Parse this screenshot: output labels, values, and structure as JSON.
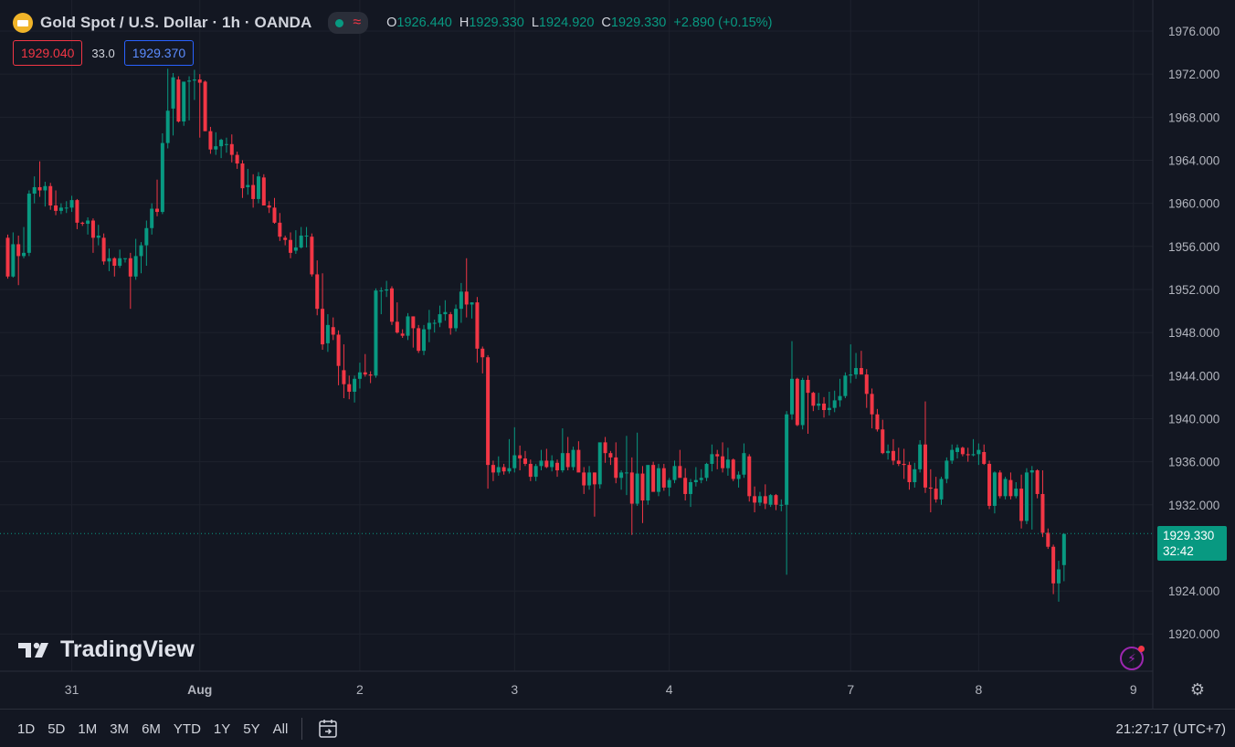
{
  "header": {
    "symbol_title": "Gold Spot / U.S. Dollar · 1h · OANDA",
    "ohlc": {
      "o_label": "O",
      "o_value": "1926.440",
      "h_label": "H",
      "h_value": "1929.330",
      "l_label": "L",
      "l_value": "1924.920",
      "c_label": "C",
      "c_value": "1929.330",
      "change": "+2.890 (+0.15%)"
    },
    "bid": "1929.040",
    "spread": "33.0",
    "ask": "1929.370"
  },
  "last_price": {
    "price": "1929.330",
    "countdown": "32:42"
  },
  "watermark": "TradingView",
  "bottom_bar": {
    "ranges": [
      "1D",
      "5D",
      "1M",
      "3M",
      "6M",
      "YTD",
      "1Y",
      "5Y",
      "All"
    ],
    "clock": "21:27:17 (UTC+7)"
  },
  "colors": {
    "up": "#089981",
    "down": "#f23645",
    "background": "#131722",
    "grid": "#1e222d"
  },
  "icons": [
    "gold-logo-icon",
    "status-dot-icon",
    "wave-icon",
    "tradingview-logo-icon",
    "flash-icon",
    "settings-icon",
    "calendar-goto-icon"
  ],
  "chart_data": {
    "type": "candlestick",
    "symbol": "XAUUSD",
    "interval": "1h",
    "ylim": [
      1918,
      1978
    ],
    "y_ticks": [
      "1976.000",
      "1972.000",
      "1968.000",
      "1964.000",
      "1960.000",
      "1956.000",
      "1952.000",
      "1948.000",
      "1944.000",
      "1940.000",
      "1936.000",
      "1932.000",
      "1924.000",
      "1920.000"
    ],
    "x_ticks": [
      {
        "label": "31",
        "index": 12
      },
      {
        "label": "Aug",
        "index": 36
      },
      {
        "label": "2",
        "index": 66
      },
      {
        "label": "3",
        "index": 95
      },
      {
        "label": "4",
        "index": 124
      },
      {
        "label": "7",
        "index": 158
      },
      {
        "label": "8",
        "index": 182
      },
      {
        "label": "9",
        "index": 211
      }
    ],
    "last_price": 1929.33,
    "candles": [
      [
        1956.8,
        1957.1,
        1953.0,
        1953.2
      ],
      [
        1953.2,
        1957.3,
        1953.1,
        1956.2
      ],
      [
        1956.2,
        1957.0,
        1952.4,
        1955.1
      ],
      [
        1955.1,
        1957.8,
        1954.9,
        1955.4
      ],
      [
        1955.4,
        1961.2,
        1955.1,
        1960.9
      ],
      [
        1960.9,
        1962.5,
        1960.0,
        1961.5
      ],
      [
        1961.5,
        1963.9,
        1960.6,
        1961.2
      ],
      [
        1961.2,
        1962.0,
        1959.7,
        1961.6
      ],
      [
        1961.6,
        1961.9,
        1959.4,
        1959.8
      ],
      [
        1959.8,
        1961.2,
        1958.9,
        1959.3
      ],
      [
        1959.3,
        1960.0,
        1959.0,
        1959.6
      ],
      [
        1959.6,
        1960.2,
        1959.1,
        1959.6
      ],
      [
        1959.6,
        1960.7,
        1959.2,
        1960.3
      ],
      [
        1960.3,
        1960.4,
        1957.6,
        1958.2
      ],
      [
        1958.2,
        1958.3,
        1957.9,
        1958.1
      ],
      [
        1958.1,
        1958.7,
        1957.1,
        1958.4
      ],
      [
        1958.4,
        1958.6,
        1955.4,
        1956.8
      ],
      [
        1956.8,
        1958.0,
        1956.1,
        1957.0
      ],
      [
        1956.8,
        1957.2,
        1954.3,
        1954.6
      ],
      [
        1954.6,
        1955.8,
        1953.7,
        1954.9
      ],
      [
        1954.9,
        1955.0,
        1953.2,
        1954.2
      ],
      [
        1954.2,
        1955.7,
        1954.0,
        1954.9
      ],
      [
        1954.9,
        1954.9,
        1954.5,
        1954.9
      ],
      [
        1954.9,
        1955.4,
        1950.2,
        1953.2
      ],
      [
        1953.2,
        1956.7,
        1952.9,
        1955.1
      ],
      [
        1955.1,
        1956.4,
        1953.5,
        1956.1
      ],
      [
        1956.1,
        1958.4,
        1954.2,
        1957.7
      ],
      [
        1957.7,
        1960.0,
        1957.1,
        1959.5
      ],
      [
        1959.5,
        1962.2,
        1958.8,
        1959.2
      ],
      [
        1959.2,
        1966.5,
        1959.0,
        1965.6
      ],
      [
        1965.6,
        1972.5,
        1965.1,
        1968.6
      ],
      [
        1968.8,
        1972.1,
        1966.3,
        1971.7
      ],
      [
        1971.5,
        1971.8,
        1967.5,
        1967.6
      ],
      [
        1967.6,
        1971.2,
        1967.2,
        1971.3
      ],
      [
        1971.3,
        1971.8,
        1967.7,
        1971.4
      ],
      [
        1971.4,
        1972.4,
        1969.6,
        1971.5
      ],
      [
        1971.5,
        1972.0,
        1966.1,
        1971.2
      ],
      [
        1971.3,
        1971.4,
        1966.7,
        1966.7
      ],
      [
        1966.7,
        1967.1,
        1964.6,
        1965.0
      ],
      [
        1965.0,
        1966.6,
        1964.5,
        1965.3
      ],
      [
        1965.3,
        1966.0,
        1964.2,
        1965.9
      ],
      [
        1965.5,
        1966.1,
        1964.7,
        1965.5
      ],
      [
        1965.5,
        1966.4,
        1963.8,
        1964.5
      ],
      [
        1964.5,
        1964.8,
        1963.2,
        1963.7
      ],
      [
        1963.7,
        1964.0,
        1960.5,
        1961.4
      ],
      [
        1961.5,
        1963.2,
        1960.8,
        1961.7
      ],
      [
        1961.7,
        1962.7,
        1959.6,
        1960.4
      ],
      [
        1960.4,
        1962.9,
        1960.0,
        1962.5
      ],
      [
        1962.4,
        1962.7,
        1959.8,
        1959.8
      ],
      [
        1959.8,
        1960.2,
        1959.1,
        1959.6
      ],
      [
        1959.6,
        1960.5,
        1958.1,
        1958.2
      ],
      [
        1958.2,
        1959.1,
        1956.5,
        1956.9
      ],
      [
        1956.8,
        1957.0,
        1956.1,
        1956.6
      ],
      [
        1956.6,
        1957.3,
        1954.9,
        1955.4
      ],
      [
        1955.6,
        1957.5,
        1955.3,
        1955.9
      ],
      [
        1955.9,
        1957.8,
        1955.8,
        1957.0
      ],
      [
        1957.0,
        1957.8,
        1955.9,
        1957.0
      ],
      [
        1956.9,
        1957.2,
        1953.2,
        1953.4
      ],
      [
        1953.4,
        1954.7,
        1949.6,
        1950.2
      ],
      [
        1950.2,
        1953.5,
        1946.4,
        1946.9
      ],
      [
        1947.0,
        1949.7,
        1946.2,
        1948.7
      ],
      [
        1948.5,
        1949.4,
        1947.3,
        1947.8
      ],
      [
        1947.8,
        1948.2,
        1943.1,
        1944.9
      ],
      [
        1944.5,
        1946.9,
        1941.9,
        1943.2
      ],
      [
        1943.2,
        1944.0,
        1941.8,
        1942.5
      ],
      [
        1942.5,
        1944.0,
        1941.5,
        1943.7
      ],
      [
        1943.7,
        1945.2,
        1942.8,
        1944.3
      ],
      [
        1944.3,
        1946.0,
        1943.9,
        1944.1
      ],
      [
        1944.1,
        1944.4,
        1943.3,
        1944.0
      ],
      [
        1944.0,
        1952.1,
        1943.8,
        1951.9
      ],
      [
        1951.9,
        1952.2,
        1949.7,
        1951.9
      ],
      [
        1951.9,
        1952.8,
        1951.3,
        1952.0
      ],
      [
        1952.1,
        1952.3,
        1948.7,
        1949.0
      ],
      [
        1949.0,
        1950.8,
        1947.9,
        1948.0
      ],
      [
        1947.9,
        1948.3,
        1947.5,
        1947.7
      ],
      [
        1947.7,
        1949.8,
        1947.3,
        1949.5
      ],
      [
        1949.5,
        1949.5,
        1946.6,
        1948.4
      ],
      [
        1948.4,
        1948.7,
        1946.1,
        1946.3
      ],
      [
        1946.3,
        1948.7,
        1945.9,
        1948.3
      ],
      [
        1948.3,
        1950.1,
        1947.1,
        1948.9
      ],
      [
        1948.9,
        1949.2,
        1948.0,
        1948.9
      ],
      [
        1948.9,
        1950.5,
        1948.5,
        1949.7
      ],
      [
        1949.7,
        1951.0,
        1949.1,
        1949.9
      ],
      [
        1949.7,
        1949.9,
        1947.8,
        1948.4
      ],
      [
        1948.4,
        1950.6,
        1948.1,
        1950.2
      ],
      [
        1950.2,
        1952.6,
        1948.9,
        1951.8
      ],
      [
        1951.8,
        1954.9,
        1949.4,
        1950.6
      ],
      [
        1950.6,
        1950.8,
        1949.3,
        1950.8
      ],
      [
        1950.8,
        1951.3,
        1945.2,
        1946.5
      ],
      [
        1946.5,
        1946.7,
        1944.2,
        1945.7
      ],
      [
        1945.7,
        1945.9,
        1933.5,
        1935.7
      ],
      [
        1935.7,
        1936.1,
        1934.2,
        1935.0
      ],
      [
        1935.0,
        1936.5,
        1934.7,
        1935.5
      ],
      [
        1935.5,
        1935.8,
        1934.8,
        1935.1
      ],
      [
        1935.1,
        1938.1,
        1934.9,
        1935.4
      ],
      [
        1935.4,
        1939.2,
        1935.0,
        1936.6
      ],
      [
        1936.6,
        1937.5,
        1935.2,
        1936.3
      ],
      [
        1936.3,
        1937.0,
        1935.6,
        1935.8
      ],
      [
        1935.8,
        1936.2,
        1934.2,
        1934.6
      ],
      [
        1934.6,
        1935.8,
        1934.2,
        1935.6
      ],
      [
        1935.6,
        1937.1,
        1935.2,
        1936.1
      ],
      [
        1936.1,
        1937.2,
        1935.4,
        1935.5
      ],
      [
        1935.5,
        1936.6,
        1935.1,
        1936.1
      ],
      [
        1935.9,
        1936.2,
        1934.6,
        1935.2
      ],
      [
        1935.2,
        1939.1,
        1935.0,
        1936.8
      ],
      [
        1936.8,
        1938.3,
        1935.2,
        1935.5
      ],
      [
        1935.5,
        1937.4,
        1935.2,
        1937.1
      ],
      [
        1937.1,
        1937.9,
        1935.3,
        1935.0
      ],
      [
        1935.0,
        1935.5,
        1933.0,
        1933.8
      ],
      [
        1933.8,
        1935.6,
        1933.4,
        1935.0
      ],
      [
        1935.0,
        1935.0,
        1930.9,
        1933.9
      ],
      [
        1933.9,
        1937.3,
        1933.5,
        1937.8
      ],
      [
        1937.8,
        1938.3,
        1935.9,
        1936.8
      ],
      [
        1936.8,
        1937.0,
        1935.7,
        1936.4
      ],
      [
        1936.4,
        1937.8,
        1934.0,
        1934.5
      ],
      [
        1934.5,
        1935.2,
        1933.4,
        1935.0
      ],
      [
        1935.0,
        1938.4,
        1932.9,
        1935.0
      ],
      [
        1935.0,
        1936.4,
        1929.2,
        1932.1
      ],
      [
        1932.1,
        1938.7,
        1931.9,
        1934.9
      ],
      [
        1934.9,
        1935.6,
        1930.3,
        1932.4
      ],
      [
        1932.4,
        1935.6,
        1932.0,
        1935.7
      ],
      [
        1935.7,
        1936.0,
        1933.5,
        1933.2
      ],
      [
        1933.2,
        1935.8,
        1932.8,
        1935.4
      ],
      [
        1935.4,
        1935.8,
        1933.3,
        1933.6
      ],
      [
        1933.6,
        1934.5,
        1932.8,
        1934.3
      ],
      [
        1934.3,
        1936.1,
        1934.0,
        1935.6
      ],
      [
        1935.6,
        1937.1,
        1934.8,
        1934.5
      ],
      [
        1934.5,
        1935.4,
        1932.4,
        1933.0
      ],
      [
        1933.0,
        1934.4,
        1931.8,
        1934.1
      ],
      [
        1934.1,
        1935.5,
        1933.7,
        1934.3
      ],
      [
        1934.3,
        1935.3,
        1934.0,
        1934.5
      ],
      [
        1934.5,
        1935.9,
        1934.2,
        1935.8
      ],
      [
        1935.8,
        1937.6,
        1935.1,
        1936.7
      ],
      [
        1936.7,
        1937.1,
        1935.3,
        1936.5
      ],
      [
        1936.5,
        1937.8,
        1935.0,
        1935.4
      ],
      [
        1935.4,
        1937.3,
        1934.7,
        1936.2
      ],
      [
        1936.2,
        1936.3,
        1934.2,
        1934.4
      ],
      [
        1934.4,
        1935.1,
        1933.6,
        1934.8
      ],
      [
        1934.8,
        1937.7,
        1934.5,
        1936.8
      ],
      [
        1936.5,
        1936.7,
        1932.3,
        1932.8
      ],
      [
        1932.8,
        1933.7,
        1931.3,
        1932.2
      ],
      [
        1932.2,
        1933.2,
        1931.9,
        1932.8
      ],
      [
        1932.8,
        1933.9,
        1931.6,
        1932.1
      ],
      [
        1932.0,
        1933.0,
        1931.8,
        1932.9
      ],
      [
        1932.9,
        1933.0,
        1931.5,
        1932.0
      ],
      [
        1932.0,
        1932.5,
        1931.4,
        1932.0
      ],
      [
        1932.0,
        1940.7,
        1925.5,
        1940.4
      ],
      [
        1940.4,
        1947.2,
        1939.9,
        1943.7
      ],
      [
        1943.7,
        1943.8,
        1939.3,
        1939.4
      ],
      [
        1939.4,
        1943.8,
        1939.0,
        1943.6
      ],
      [
        1943.6,
        1944.0,
        1938.6,
        1942.4
      ],
      [
        1942.4,
        1942.5,
        1940.7,
        1941.2
      ],
      [
        1941.2,
        1942.4,
        1940.8,
        1941.4
      ],
      [
        1941.4,
        1942.0,
        1940.1,
        1940.8
      ],
      [
        1940.8,
        1942.5,
        1940.3,
        1941.0
      ],
      [
        1941.0,
        1942.6,
        1940.6,
        1941.7
      ],
      [
        1941.7,
        1943.7,
        1941.1,
        1942.1
      ],
      [
        1942.1,
        1944.3,
        1941.9,
        1944.0
      ],
      [
        1944.0,
        1946.9,
        1943.3,
        1944.1
      ],
      [
        1944.1,
        1946.1,
        1943.7,
        1944.7
      ],
      [
        1944.7,
        1946.3,
        1944.3,
        1944.1
      ],
      [
        1944.1,
        1944.6,
        1941.0,
        1942.3
      ],
      [
        1942.3,
        1942.8,
        1939.1,
        1940.4
      ],
      [
        1940.4,
        1940.9,
        1938.8,
        1939.0
      ],
      [
        1939.0,
        1939.9,
        1936.7,
        1936.8
      ],
      [
        1936.8,
        1937.6,
        1936.2,
        1937.0
      ],
      [
        1937.0,
        1938.1,
        1935.7,
        1936.1
      ],
      [
        1936.1,
        1937.3,
        1935.6,
        1935.8
      ],
      [
        1935.8,
        1937.2,
        1934.4,
        1935.7
      ],
      [
        1935.7,
        1936.0,
        1933.4,
        1934.1
      ],
      [
        1934.1,
        1935.9,
        1933.6,
        1935.3
      ],
      [
        1935.3,
        1938.0,
        1935.0,
        1937.6
      ],
      [
        1937.6,
        1941.6,
        1933.1,
        1933.6
      ],
      [
        1933.6,
        1935.3,
        1931.3,
        1933.5
      ],
      [
        1933.5,
        1934.6,
        1932.2,
        1932.5
      ],
      [
        1932.5,
        1934.6,
        1932.0,
        1934.4
      ],
      [
        1934.4,
        1936.4,
        1934.0,
        1936.1
      ],
      [
        1936.1,
        1937.6,
        1935.8,
        1937.1
      ],
      [
        1936.9,
        1937.6,
        1936.3,
        1937.3
      ],
      [
        1937.3,
        1937.4,
        1936.5,
        1936.7
      ],
      [
        1936.7,
        1937.3,
        1936.0,
        1936.6
      ],
      [
        1936.6,
        1938.1,
        1936.5,
        1936.7
      ],
      [
        1936.7,
        1937.7,
        1935.7,
        1937.1
      ],
      [
        1936.9,
        1937.6,
        1935.7,
        1935.8
      ],
      [
        1935.8,
        1936.1,
        1931.6,
        1931.9
      ],
      [
        1931.9,
        1935.1,
        1931.2,
        1935.0
      ],
      [
        1935.0,
        1935.2,
        1932.6,
        1932.8
      ],
      [
        1932.8,
        1934.6,
        1932.5,
        1934.4
      ],
      [
        1934.3,
        1935.0,
        1932.5,
        1932.8
      ],
      [
        1932.8,
        1934.1,
        1932.6,
        1933.5
      ],
      [
        1933.5,
        1934.8,
        1929.8,
        1930.5
      ],
      [
        1930.5,
        1935.4,
        1930.2,
        1935.0
      ],
      [
        1935.0,
        1935.6,
        1929.7,
        1935.2
      ],
      [
        1935.2,
        1935.3,
        1932.6,
        1933.0
      ],
      [
        1933.0,
        1935.2,
        1929.0,
        1929.4
      ],
      [
        1929.4,
        1929.8,
        1927.9,
        1928.1
      ],
      [
        1928.1,
        1928.3,
        1923.7,
        1924.7
      ],
      [
        1924.7,
        1926.8,
        1923.0,
        1926.0
      ],
      [
        1926.4,
        1929.3,
        1924.9,
        1929.3
      ]
    ]
  }
}
